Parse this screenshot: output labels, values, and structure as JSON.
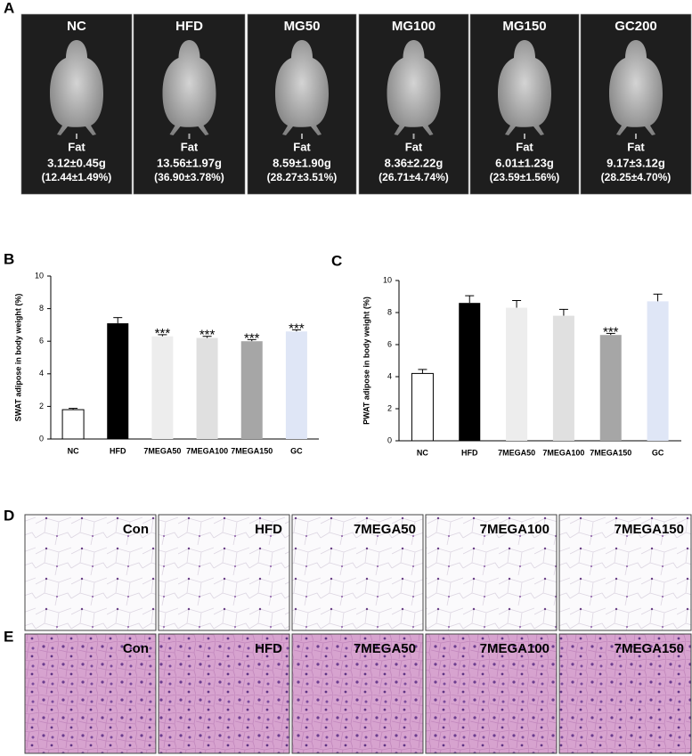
{
  "panel_labels": [
    "A",
    "B",
    "C",
    "D",
    "E"
  ],
  "panel_a": {
    "groups": [
      {
        "name": "NC",
        "label": "Fat",
        "mass": "3.12±0.45g",
        "percent": "(12.44±1.49%)"
      },
      {
        "name": "HFD",
        "label": "Fat",
        "mass": "13.56±1.97g",
        "percent": "(36.90±3.78%)"
      },
      {
        "name": "MG50",
        "label": "Fat",
        "mass": "8.59±1.90g",
        "percent": "(28.27±3.51%)"
      },
      {
        "name": "MG100",
        "label": "Fat",
        "mass": "8.36±2.22g",
        "percent": "(26.71±4.74%)"
      },
      {
        "name": "MG150",
        "label": "Fat",
        "mass": "6.01±1.23g",
        "percent": "(23.59±1.56%)"
      },
      {
        "name": "GC200",
        "label": "Fat",
        "mass": "9.17±3.12g",
        "percent": "(28.25±4.70%)"
      }
    ]
  },
  "chart_data": [
    {
      "type": "bar",
      "ylabel": "SWAT adipose in body weight (%)",
      "categories": [
        "NC",
        "HFD",
        "7MEGA50",
        "7MEGA100",
        "7MEGA150",
        "GC"
      ],
      "values": [
        1.8,
        7.1,
        6.3,
        6.2,
        6.0,
        6.6
      ],
      "errors": [
        0.08,
        0.35,
        0.1,
        0.1,
        0.1,
        0.1
      ],
      "colors": [
        "#ffffff",
        "#000000",
        "#ededed",
        "#e0e0e0",
        "#a6a6a6",
        "#dfe6f6"
      ],
      "significance": [
        null,
        null,
        "***",
        "***",
        "***",
        "***"
      ],
      "ylim": [
        0,
        10
      ],
      "yticks": [
        0,
        2,
        4,
        6,
        8,
        10
      ]
    },
    {
      "type": "bar",
      "ylabel": "PWAT adipose in body weight (%)",
      "categories": [
        "NC",
        "HFD",
        "7MEGA50",
        "7MEGA100",
        "7MEGA150",
        "GC"
      ],
      "values": [
        4.2,
        8.6,
        8.3,
        7.8,
        6.6,
        8.7
      ],
      "errors": [
        0.25,
        0.45,
        0.45,
        0.4,
        0.1,
        0.45
      ],
      "colors": [
        "#ffffff",
        "#000000",
        "#ededed",
        "#e0e0e0",
        "#a6a6a6",
        "#dfe6f6"
      ],
      "significance": [
        null,
        null,
        null,
        null,
        "***",
        null
      ],
      "ylim": [
        0,
        10
      ],
      "yticks": [
        0,
        2,
        4,
        6,
        8,
        10
      ]
    }
  ],
  "panel_d": {
    "labels": [
      "Con",
      "HFD",
      "7MEGA50",
      "7MEGA100",
      "7MEGA150"
    ]
  },
  "panel_e": {
    "labels": [
      "Con",
      "HFD",
      "7MEGA50",
      "7MEGA100",
      "7MEGA150"
    ]
  }
}
